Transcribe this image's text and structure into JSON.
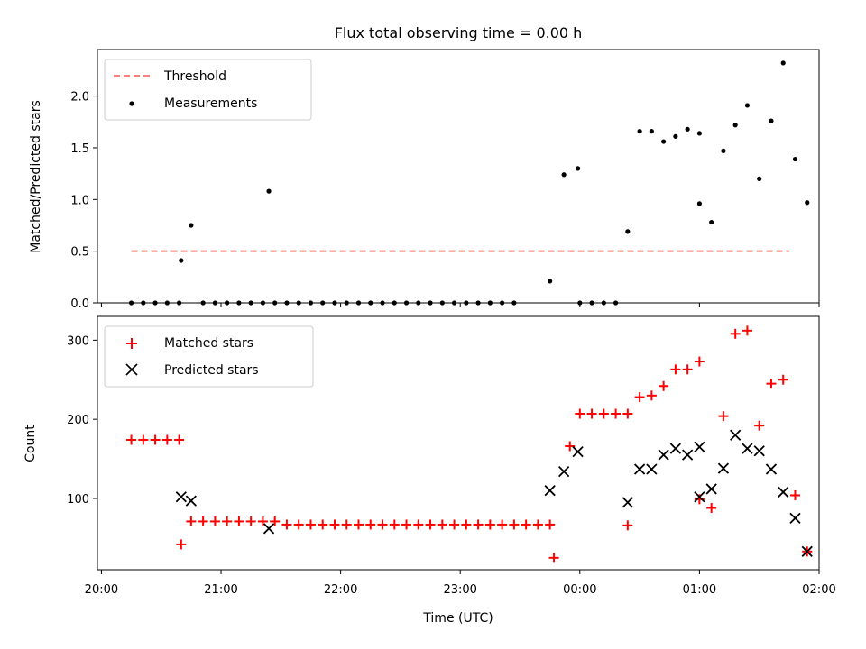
{
  "chart_data": [
    {
      "type": "scatter",
      "title": "Flux total observing time = 0.00 h",
      "xlabel": "",
      "ylabel": "Matched/Predicted stars",
      "ylim": [
        0,
        2.45
      ],
      "yticks": [
        0.0,
        0.5,
        1.0,
        1.5,
        2.0
      ],
      "ytick_labels": [
        "0.0",
        "0.5",
        "1.0",
        "1.5",
        "2.0"
      ],
      "legend": {
        "position": "top-left",
        "entries": [
          "Threshold",
          "Measurements"
        ]
      },
      "series": [
        {
          "name": "Threshold",
          "style": "dashed-line",
          "color": "#ff7f7f",
          "x": [
            "20:15",
            "01:45"
          ],
          "y": [
            0.5,
            0.5
          ]
        },
        {
          "name": "Measurements",
          "style": "dot",
          "color": "#000000",
          "points": [
            [
              "20:15",
              0
            ],
            [
              "20:21",
              0
            ],
            [
              "20:27",
              0
            ],
            [
              "20:33",
              0
            ],
            [
              "20:39",
              0
            ],
            [
              "20:40",
              0.41
            ],
            [
              "20:45",
              0.75
            ],
            [
              "20:51",
              0
            ],
            [
              "20:57",
              0
            ],
            [
              "21:03",
              0
            ],
            [
              "21:09",
              0
            ],
            [
              "21:15",
              0
            ],
            [
              "21:21",
              0
            ],
            [
              "21:27",
              0
            ],
            [
              "21:24",
              1.08
            ],
            [
              "21:33",
              0
            ],
            [
              "21:39",
              0
            ],
            [
              "21:45",
              0
            ],
            [
              "21:51",
              0
            ],
            [
              "21:57",
              0
            ],
            [
              "22:03",
              0
            ],
            [
              "22:09",
              0
            ],
            [
              "22:15",
              0
            ],
            [
              "22:21",
              0
            ],
            [
              "22:27",
              0
            ],
            [
              "22:33",
              0
            ],
            [
              "22:39",
              0
            ],
            [
              "22:45",
              0
            ],
            [
              "22:51",
              0
            ],
            [
              "22:57",
              0
            ],
            [
              "23:03",
              0
            ],
            [
              "23:09",
              0
            ],
            [
              "23:15",
              0
            ],
            [
              "23:21",
              0
            ],
            [
              "23:27",
              0
            ],
            [
              "23:45",
              0.21
            ],
            [
              "23:52",
              1.24
            ],
            [
              "23:59",
              1.3
            ],
            [
              "00:00",
              0
            ],
            [
              "00:06",
              0
            ],
            [
              "00:12",
              0
            ],
            [
              "00:18",
              0
            ],
            [
              "00:24",
              0.69
            ],
            [
              "00:30",
              1.66
            ],
            [
              "00:36",
              1.66
            ],
            [
              "00:42",
              1.56
            ],
            [
              "00:48",
              1.61
            ],
            [
              "00:54",
              1.68
            ],
            [
              "01:00",
              1.64
            ],
            [
              "01:00",
              0.96
            ],
            [
              "01:06",
              0.78
            ],
            [
              "01:12",
              1.47
            ],
            [
              "01:18",
              1.72
            ],
            [
              "01:24",
              1.91
            ],
            [
              "01:30",
              1.2
            ],
            [
              "01:36",
              1.76
            ],
            [
              "01:42",
              2.32
            ],
            [
              "01:48",
              1.39
            ],
            [
              "01:54",
              0.97
            ]
          ]
        }
      ]
    },
    {
      "type": "scatter",
      "title": "",
      "xlabel": "Time (UTC)",
      "ylabel": "Count",
      "ylim": [
        10,
        330
      ],
      "yticks": [
        100,
        200,
        300
      ],
      "ytick_labels": [
        "100",
        "200",
        "300"
      ],
      "xlim": [
        "19:58",
        "02:00"
      ],
      "xticks": [
        "20:00",
        "21:00",
        "22:00",
        "23:00",
        "00:00",
        "01:00",
        "02:00"
      ],
      "xtick_labels": [
        "20:00",
        "21:00",
        "22:00",
        "23:00",
        "00:00",
        "01:00",
        "02:00"
      ],
      "legend": {
        "position": "top-left",
        "entries": [
          "Matched stars",
          "Predicted stars"
        ]
      },
      "series": [
        {
          "name": "Matched stars",
          "marker": "plus",
          "color": "#ff0000",
          "points": [
            [
              "20:15",
              174
            ],
            [
              "20:21",
              174
            ],
            [
              "20:27",
              174
            ],
            [
              "20:33",
              174
            ],
            [
              "20:39",
              174
            ],
            [
              "20:40",
              42
            ],
            [
              "20:45",
              71
            ],
            [
              "20:51",
              71
            ],
            [
              "20:57",
              71
            ],
            [
              "21:03",
              71
            ],
            [
              "21:09",
              71
            ],
            [
              "21:15",
              71
            ],
            [
              "21:21",
              71
            ],
            [
              "21:27",
              71
            ],
            [
              "21:33",
              67
            ],
            [
              "21:39",
              67
            ],
            [
              "21:45",
              67
            ],
            [
              "21:51",
              67
            ],
            [
              "21:57",
              67
            ],
            [
              "22:03",
              67
            ],
            [
              "22:09",
              67
            ],
            [
              "22:15",
              67
            ],
            [
              "22:21",
              67
            ],
            [
              "22:27",
              67
            ],
            [
              "22:33",
              67
            ],
            [
              "22:39",
              67
            ],
            [
              "22:45",
              67
            ],
            [
              "22:51",
              67
            ],
            [
              "22:57",
              67
            ],
            [
              "23:03",
              67
            ],
            [
              "23:09",
              67
            ],
            [
              "23:15",
              67
            ],
            [
              "23:21",
              67
            ],
            [
              "23:27",
              67
            ],
            [
              "23:33",
              67
            ],
            [
              "23:39",
              67
            ],
            [
              "23:45",
              67
            ],
            [
              "23:47",
              25
            ],
            [
              "23:55",
              166
            ],
            [
              "00:00",
              207
            ],
            [
              "00:06",
              207
            ],
            [
              "00:12",
              207
            ],
            [
              "00:18",
              207
            ],
            [
              "00:24",
              207
            ],
            [
              "00:24",
              66
            ],
            [
              "00:30",
              228
            ],
            [
              "00:36",
              230
            ],
            [
              "00:42",
              242
            ],
            [
              "00:48",
              263
            ],
            [
              "00:54",
              263
            ],
            [
              "01:00",
              273
            ],
            [
              "01:00",
              99
            ],
            [
              "01:06",
              88
            ],
            [
              "01:12",
              204
            ],
            [
              "01:18",
              308
            ],
            [
              "01:24",
              312
            ],
            [
              "01:30",
              192
            ],
            [
              "01:36",
              245
            ],
            [
              "01:42",
              250
            ],
            [
              "01:48",
              104
            ],
            [
              "01:54",
              33
            ]
          ]
        },
        {
          "name": "Predicted stars",
          "marker": "x",
          "color": "#000000",
          "points": [
            [
              "20:40",
              102
            ],
            [
              "20:45",
              97
            ],
            [
              "21:24",
              62
            ],
            [
              "23:45",
              110
            ],
            [
              "23:52",
              134
            ],
            [
              "23:59",
              159
            ],
            [
              "00:24",
              95
            ],
            [
              "00:30",
              137
            ],
            [
              "00:36",
              137
            ],
            [
              "00:42",
              155
            ],
            [
              "00:48",
              163
            ],
            [
              "00:54",
              155
            ],
            [
              "01:00",
              165
            ],
            [
              "01:00",
              102
            ],
            [
              "01:06",
              112
            ],
            [
              "01:12",
              138
            ],
            [
              "01:18",
              180
            ],
            [
              "01:24",
              163
            ],
            [
              "01:30",
              160
            ],
            [
              "01:36",
              137
            ],
            [
              "01:42",
              108
            ],
            [
              "01:48",
              75
            ],
            [
              "01:54",
              33
            ]
          ]
        }
      ]
    }
  ]
}
